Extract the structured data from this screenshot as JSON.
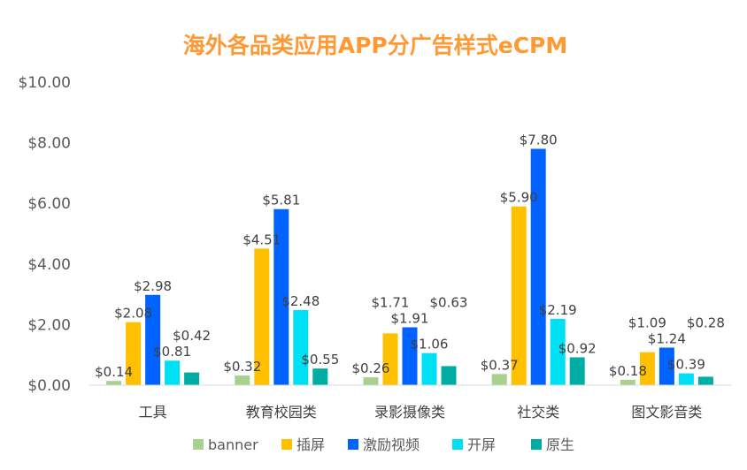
{
  "chart_data": {
    "type": "bar",
    "title": "海外各品类应用APP分广告样式eCPM",
    "title_color": "#ff9933",
    "categories": [
      "工具",
      "教育校园类",
      "录影摄像类",
      "社交类",
      "图文影音类"
    ],
    "series": [
      {
        "name": "banner",
        "color": "#a9d18e",
        "values": [
          0.14,
          0.32,
          0.26,
          0.37,
          0.18
        ],
        "labels": [
          "$0.14",
          "$0.32",
          "$0.26",
          "$0.37",
          "$0.18"
        ]
      },
      {
        "name": "插屏",
        "color": "#ffc000",
        "values": [
          2.08,
          4.51,
          1.71,
          5.9,
          1.09
        ],
        "labels": [
          "$2.08",
          "$4.51",
          "$1.71",
          "$5.90",
          "$1.09"
        ]
      },
      {
        "name": "激励视频",
        "color": "#0062ff",
        "values": [
          2.98,
          5.81,
          1.91,
          7.8,
          1.24
        ],
        "labels": [
          "$2.98",
          "$5.81",
          "$1.91",
          "$7.80",
          "$1.24"
        ]
      },
      {
        "name": "开屏",
        "color": "#00e0f5",
        "values": [
          0.81,
          2.48,
          1.06,
          2.19,
          0.39
        ],
        "labels": [
          "$0.81",
          "$2.48",
          "$1.06",
          "$2.19",
          "$0.39"
        ]
      },
      {
        "name": "原生",
        "color": "#00ada5",
        "values": [
          0.42,
          0.55,
          0.63,
          0.92,
          0.28
        ],
        "labels": [
          "$0.42",
          "$0.55",
          "$0.63",
          "$0.92",
          "$0.28"
        ]
      }
    ],
    "ylim": [
      0,
      10
    ],
    "yticks": [
      "$0.00",
      "$2.00",
      "$4.00",
      "$6.00",
      "$8.00",
      "$10.00"
    ],
    "grid": false,
    "legend": "bottom"
  }
}
